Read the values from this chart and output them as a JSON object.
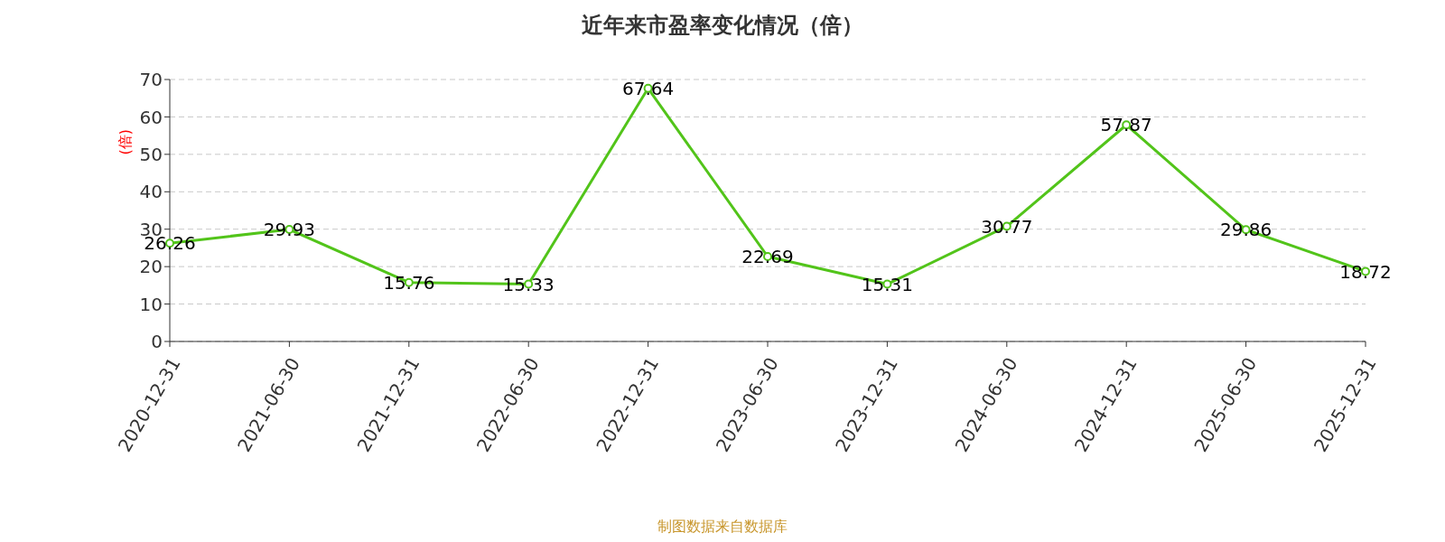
{
  "chart_data": {
    "type": "line",
    "title": "近年来市盈率变化情况（倍）",
    "ylabel": "(倍)",
    "categories": [
      "2020-12-31",
      "2021-06-30",
      "2021-12-31",
      "2022-06-30",
      "2022-12-31",
      "2023-06-30",
      "2023-12-31",
      "2024-06-30",
      "2024-12-31",
      "2025-06-30",
      "2025-12-31"
    ],
    "series": [
      {
        "color": "#52c41a",
        "values": [
          26.26,
          29.93,
          15.76,
          15.33,
          67.64,
          22.69,
          15.31,
          30.77,
          57.87,
          29.86,
          18.72
        ]
      }
    ],
    "ylim": [
      0,
      70
    ],
    "yticks": [
      0,
      10,
      20,
      30,
      40,
      50,
      60,
      70
    ],
    "grid": "y",
    "marker": "circle",
    "line_style": "solid",
    "data_labels": true,
    "annotations": [
      "制图数据来自数据库"
    ]
  }
}
